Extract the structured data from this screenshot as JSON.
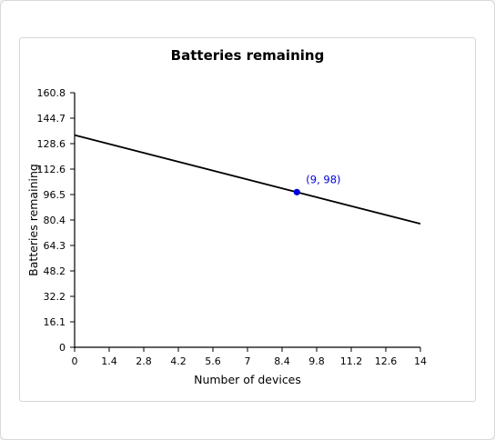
{
  "chart_data": {
    "type": "line",
    "title": "Batteries remaining",
    "xlabel": "Number of devices",
    "ylabel": "Batteries remaining",
    "xlim": [
      0,
      14
    ],
    "ylim": [
      0,
      160.8
    ],
    "x_ticks": [
      "0",
      "1.4",
      "2.8",
      "4.2",
      "5.6",
      "7",
      "8.4",
      "9.8",
      "11.2",
      "12.6",
      "14"
    ],
    "y_ticks": [
      "0",
      "16.1",
      "32.2",
      "48.2",
      "64.3",
      "80.4",
      "96.5",
      "112.6",
      "128.6",
      "144.7",
      "160.8"
    ],
    "series": [
      {
        "x": [
          0,
          14
        ],
        "values": [
          134,
          78
        ],
        "color": "#000000"
      }
    ],
    "highlight_point": {
      "x": 9,
      "y": 98,
      "label": "(9, 98)",
      "color": "#0000dd"
    },
    "grid": false,
    "legend": "none"
  }
}
